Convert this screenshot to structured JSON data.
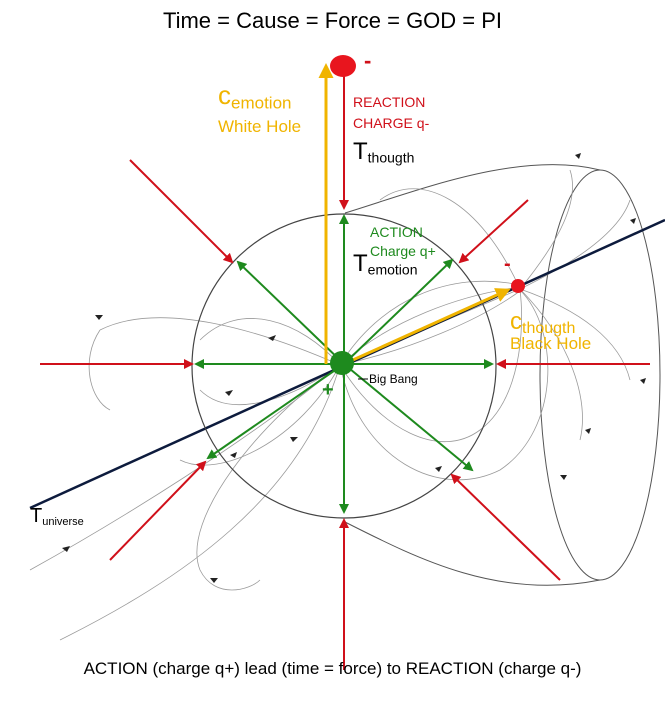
{
  "title": "Time = Cause = Force = GOD = PI",
  "caption": "ACTION (charge q+)  lead (time = force) to REACTION (charge q-)",
  "labels": {
    "top_minus": "-",
    "c_emotion_c": "c",
    "c_emotion_sub": "emotion",
    "white_hole": "White Hole",
    "reaction": "REACTION",
    "charge_q_minus": "CHARGE q-",
    "t_thougth_t": "T",
    "t_thougth_sub": "thougth",
    "action": "ACTION",
    "charge_q_plus": "Charge q+",
    "t_emotion_t": "T",
    "t_emotion_sub": "emotion",
    "right_minus": "-",
    "c_thougth_c": "c",
    "c_thougth_sub": "thougth",
    "black_hole": "Black Hole",
    "plus": "+",
    "big_bang": "Big Bang",
    "t_universe_t": "T",
    "t_universe_sub": "universe"
  },
  "colors": {
    "red": "#d0101a",
    "green": "#1e8a1e",
    "gold": "#f0b400",
    "axis": "#0d1b3d",
    "field": "#999999"
  }
}
